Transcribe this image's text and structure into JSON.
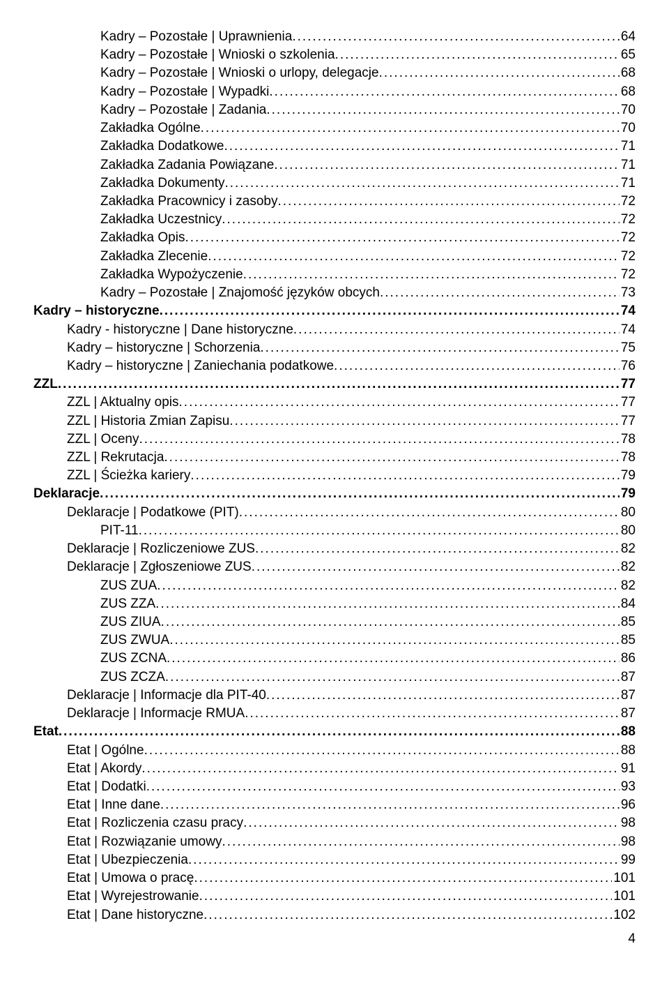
{
  "font_family": "Arial",
  "font_size_pt": 14,
  "text_color": "#000000",
  "background_color": "#ffffff",
  "page_number": "4",
  "entries": [
    {
      "indent": 2,
      "title": "Kadry – Pozostałe | Uprawnienia",
      "page": "64"
    },
    {
      "indent": 2,
      "title": "Kadry – Pozostałe | Wnioski o szkolenia",
      "page": "65"
    },
    {
      "indent": 2,
      "title": "Kadry – Pozostałe | Wnioski o urlopy, delegacje",
      "page": "68"
    },
    {
      "indent": 2,
      "title": "Kadry – Pozostałe | Wypadki",
      "page": "68"
    },
    {
      "indent": 2,
      "title": "Kadry – Pozostałe | Zadania",
      "page": "70"
    },
    {
      "indent": 2,
      "title": "Zakładka Ogólne",
      "page": "70"
    },
    {
      "indent": 2,
      "title": "Zakładka Dodatkowe",
      "page": "71"
    },
    {
      "indent": 2,
      "title": "Zakładka Zadania Powiązane",
      "page": "71"
    },
    {
      "indent": 2,
      "title": "Zakładka Dokumenty",
      "page": "71"
    },
    {
      "indent": 2,
      "title": "Zakładka Pracownicy i zasoby",
      "page": "72"
    },
    {
      "indent": 2,
      "title": "Zakładka Uczestnicy",
      "page": "72"
    },
    {
      "indent": 2,
      "title": "Zakładka Opis",
      "page": "72"
    },
    {
      "indent": 2,
      "title": "Zakładka Zlecenie",
      "page": "72"
    },
    {
      "indent": 2,
      "title": "Zakładka Wypożyczenie",
      "page": "72"
    },
    {
      "indent": 2,
      "title": "Kadry – Pozostałe | Znajomość języków obcych",
      "page": "73"
    },
    {
      "indent": 0,
      "title": "Kadry – historyczne",
      "page": "74"
    },
    {
      "indent": 1,
      "title": "Kadry - historyczne | Dane historyczne",
      "page": "74"
    },
    {
      "indent": 1,
      "title": "Kadry – historyczne | Schorzenia",
      "page": "75"
    },
    {
      "indent": 1,
      "title": "Kadry – historyczne | Zaniechania podatkowe",
      "page": "76"
    },
    {
      "indent": 0,
      "title": "ZZL",
      "page": "77"
    },
    {
      "indent": 1,
      "title": "ZZL | Aktualny opis",
      "page": "77"
    },
    {
      "indent": 1,
      "title": "ZZL | Historia Zmian Zapisu",
      "page": "77"
    },
    {
      "indent": 1,
      "title": "ZZL | Oceny",
      "page": "78"
    },
    {
      "indent": 1,
      "title": "ZZL | Rekrutacja",
      "page": "78"
    },
    {
      "indent": 1,
      "title": "ZZL | Ścieżka kariery",
      "page": "79"
    },
    {
      "indent": 0,
      "title": "Deklaracje",
      "page": "79"
    },
    {
      "indent": 1,
      "title": "Deklaracje | Podatkowe (PIT)",
      "page": "80"
    },
    {
      "indent": 2,
      "title": "PIT-11",
      "page": "80"
    },
    {
      "indent": 1,
      "title": "Deklaracje | Rozliczeniowe ZUS",
      "page": "82"
    },
    {
      "indent": 1,
      "title": "Deklaracje | Zgłoszeniowe ZUS",
      "page": "82"
    },
    {
      "indent": 2,
      "title": "ZUS ZUA",
      "page": "82"
    },
    {
      "indent": 2,
      "title": "ZUS ZZA",
      "page": "84"
    },
    {
      "indent": 2,
      "title": "ZUS ZIUA",
      "page": "85"
    },
    {
      "indent": 2,
      "title": "ZUS ZWUA",
      "page": "85"
    },
    {
      "indent": 2,
      "title": "ZUS ZCNA",
      "page": "86"
    },
    {
      "indent": 2,
      "title": "ZUS ZCZA",
      "page": "87"
    },
    {
      "indent": 1,
      "title": "Deklaracje | Informacje dla PIT-40",
      "page": "87"
    },
    {
      "indent": 1,
      "title": "Deklaracje | Informacje RMUA",
      "page": "87"
    },
    {
      "indent": 0,
      "title": "Etat",
      "page": "88"
    },
    {
      "indent": 1,
      "title": "Etat | Ogólne",
      "page": "88"
    },
    {
      "indent": 1,
      "title": "Etat | Akordy",
      "page": "91"
    },
    {
      "indent": 1,
      "title": "Etat | Dodatki",
      "page": "93"
    },
    {
      "indent": 1,
      "title": "Etat | Inne dane",
      "page": "96"
    },
    {
      "indent": 1,
      "title": "Etat | Rozliczenia czasu pracy",
      "page": "98"
    },
    {
      "indent": 1,
      "title": "Etat | Rozwiązanie umowy",
      "page": "98"
    },
    {
      "indent": 1,
      "title": "Etat | Ubezpieczenia",
      "page": "99"
    },
    {
      "indent": 1,
      "title": "Etat | Umowa o pracę",
      "page": "101"
    },
    {
      "indent": 1,
      "title": "Etat | Wyrejestrowanie",
      "page": "101"
    },
    {
      "indent": 1,
      "title": "Etat | Dane historyczne",
      "page": "102"
    }
  ]
}
